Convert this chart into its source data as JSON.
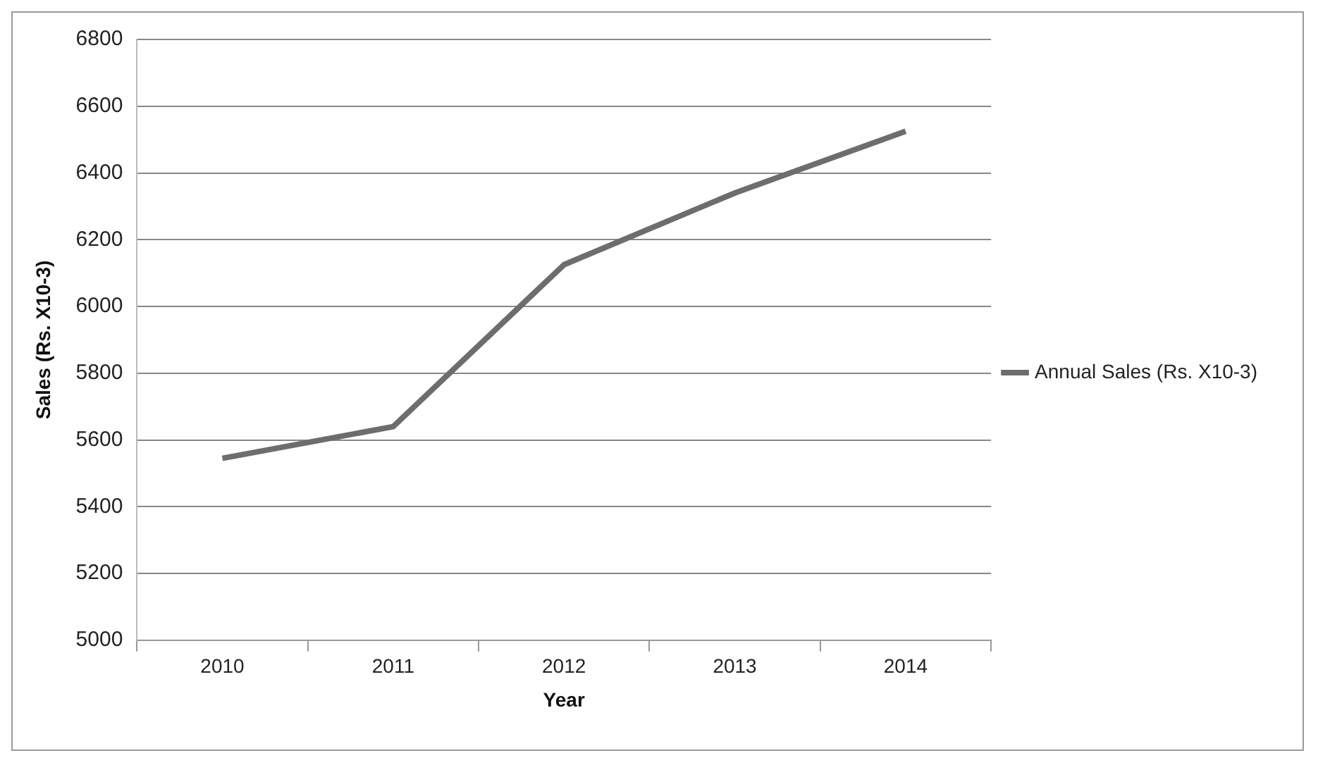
{
  "chart_data": {
    "type": "line",
    "xlabel": "Year",
    "ylabel": "Sales (Rs. X10-3)",
    "categories": [
      "2010",
      "2011",
      "2012",
      "2013",
      "2014"
    ],
    "series": [
      {
        "name": "Annual Sales (Rs. X10-3)",
        "color": "#6d6d6d",
        "values": [
          5545,
          5640,
          6125,
          6340,
          6525
        ]
      }
    ],
    "ylim": [
      5000,
      6800
    ],
    "yticks": [
      5000,
      5200,
      5400,
      5600,
      5800,
      6000,
      6200,
      6400,
      6600,
      6800
    ],
    "grid": "y",
    "legend": "right",
    "marker": "none"
  }
}
